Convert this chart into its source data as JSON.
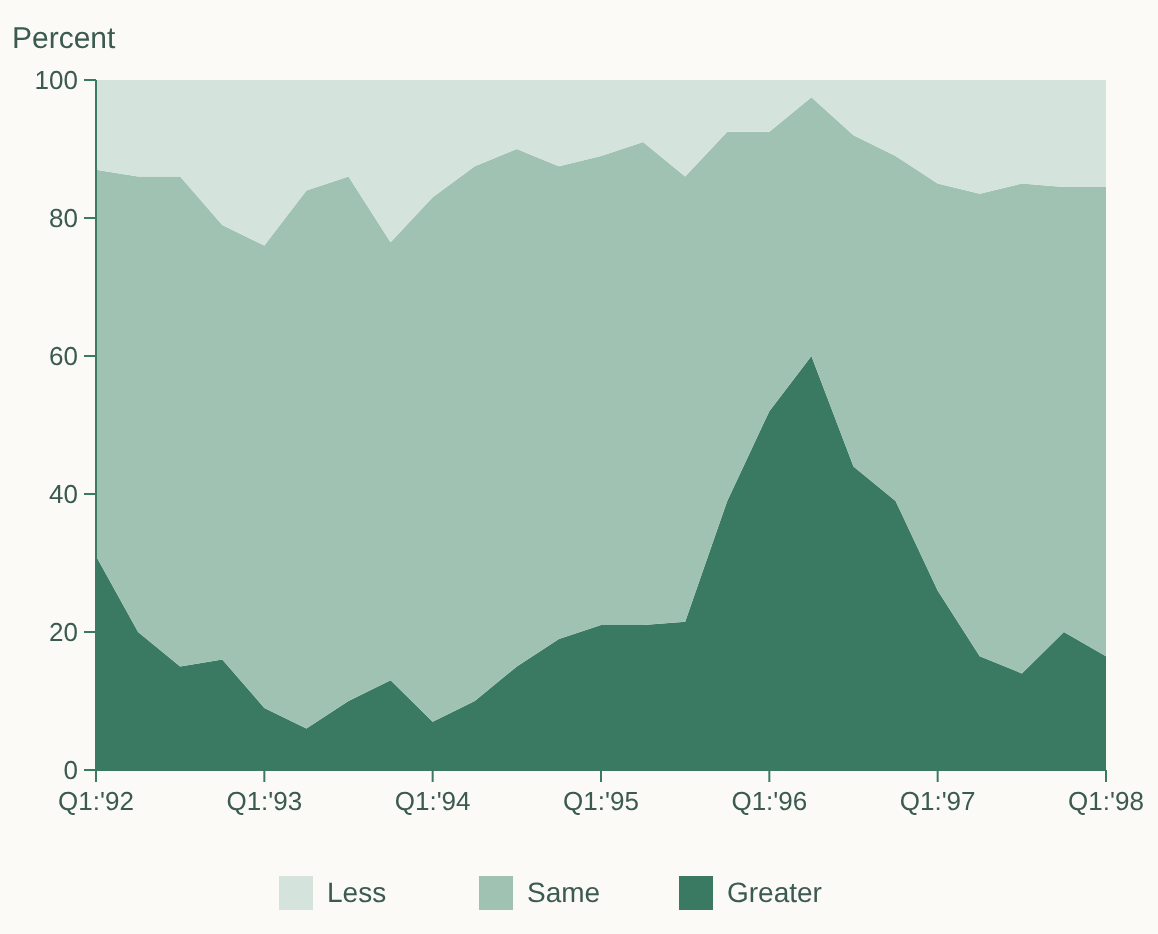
{
  "chart_data": {
    "type": "area",
    "stacked": true,
    "ylabel": "Percent",
    "categories": [
      "Q1:'92",
      null,
      null,
      null,
      "Q1:'93",
      null,
      null,
      null,
      "Q1:'94",
      null,
      null,
      null,
      "Q1:'95",
      null,
      null,
      null,
      "Q1:'96",
      null,
      null,
      null,
      "Q1:'97",
      null,
      null,
      null,
      "Q1:'98"
    ],
    "series": [
      {
        "name": "Greater",
        "color": "#3a7a62",
        "values": [
          31,
          20,
          15,
          16,
          9,
          6,
          10,
          13,
          7,
          10,
          15,
          19,
          21,
          21,
          21.5,
          39,
          52,
          60,
          44,
          39,
          26,
          16.5,
          14,
          20,
          16.5
        ]
      },
      {
        "name": "Same",
        "color": "#9fc2b3",
        "values": [
          56,
          66,
          71,
          63,
          67,
          78,
          76,
          63.5,
          76,
          77.5,
          75,
          68.5,
          68,
          70,
          64.5,
          53.5,
          40.5,
          37.5,
          48,
          50,
          59,
          67,
          71,
          64.5,
          68
        ]
      },
      {
        "name": "Less",
        "color": "#d4e4dd",
        "values": [
          13,
          14,
          14,
          21,
          24,
          16,
          14,
          23.5,
          17,
          12.5,
          10,
          12.5,
          11,
          9,
          14,
          7.5,
          7.5,
          2.5,
          8,
          11,
          15,
          16.5,
          15,
          15.5,
          15.5
        ]
      }
    ],
    "ylim": [
      0,
      100
    ],
    "yticks": [
      0,
      20,
      40,
      60,
      80,
      100
    ],
    "grid": false,
    "legend": "bottom"
  }
}
